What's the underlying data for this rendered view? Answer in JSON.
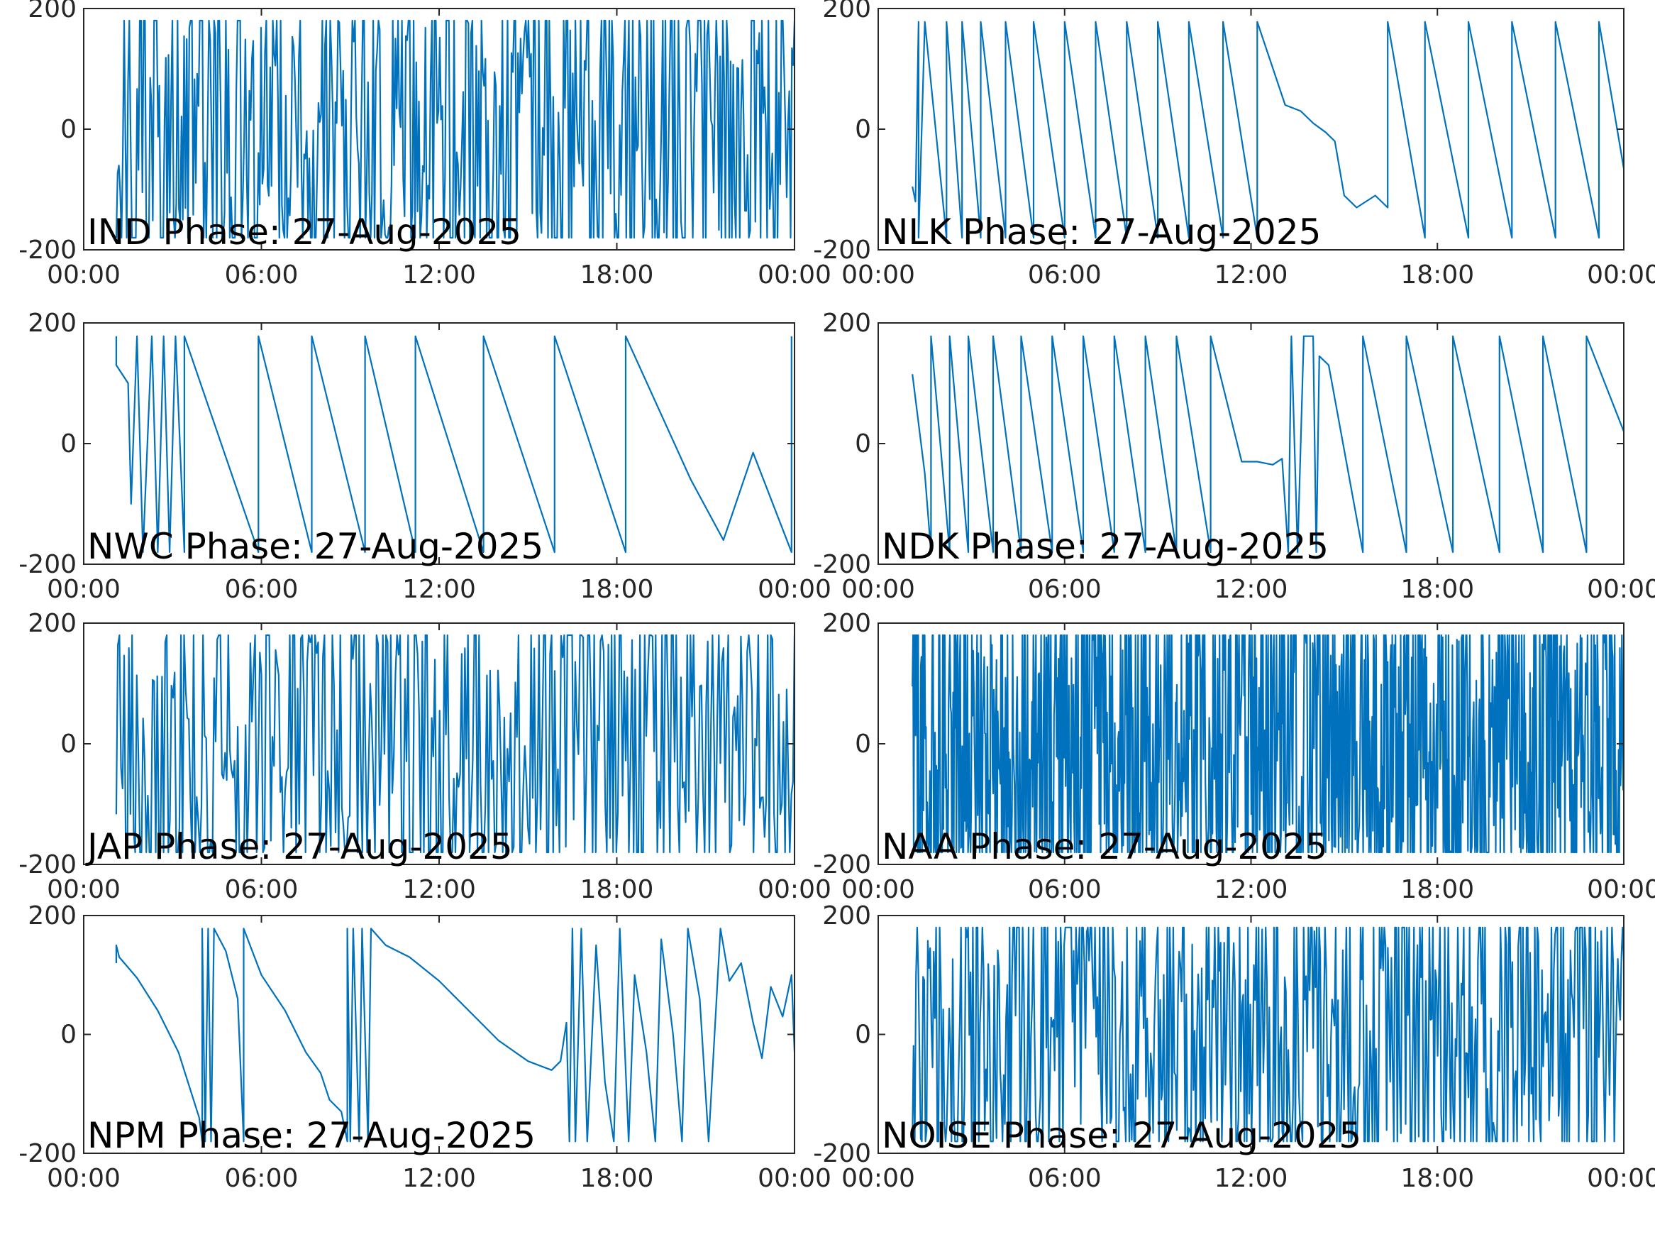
{
  "figure": {
    "line_color": "#0072BD",
    "axis_color": "#262626",
    "background": "#ffffff"
  },
  "chart_data": [
    {
      "type": "line",
      "title": "IND Phase: 27-Aug-2025",
      "ylim": [
        -200,
        200
      ],
      "yticks": [
        "-200",
        "0",
        "200"
      ],
      "xticks": [
        "00:00",
        "06:00",
        "12:00",
        "18:00",
        "00:00"
      ],
      "xlim_hours": [
        0,
        24
      ],
      "grid": false,
      "pattern": "dense",
      "start_hour": 1.1,
      "end_hour": 24.0,
      "segments": 520,
      "amplitude": 180
    },
    {
      "type": "line",
      "title": "NLK Phase: 27-Aug-2025",
      "ylim": [
        -200,
        200
      ],
      "yticks": [
        "-200",
        "0",
        "200"
      ],
      "xticks": [
        "00:00",
        "06:00",
        "12:00",
        "18:00",
        "00:00"
      ],
      "xlim_hours": [
        0,
        24
      ],
      "grid": false,
      "pattern": "path",
      "points": [
        [
          1.1,
          -95
        ],
        [
          1.2,
          -120
        ],
        [
          1.3,
          178
        ],
        [
          1.3,
          -180
        ],
        [
          1.5,
          178
        ],
        [
          2.2,
          -180
        ],
        [
          2.2,
          178
        ],
        [
          2.7,
          -180
        ],
        [
          2.7,
          178
        ],
        [
          3.3,
          -180
        ],
        [
          3.3,
          178
        ],
        [
          4.1,
          -180
        ],
        [
          4.1,
          178
        ],
        [
          5.0,
          -180
        ],
        [
          5.0,
          178
        ],
        [
          6.0,
          -180
        ],
        [
          6.0,
          178
        ],
        [
          7.0,
          -180
        ],
        [
          7.0,
          178
        ],
        [
          8.0,
          -180
        ],
        [
          8.0,
          178
        ],
        [
          9.0,
          -180
        ],
        [
          9.0,
          178
        ],
        [
          10.0,
          -180
        ],
        [
          10.0,
          178
        ],
        [
          11.1,
          -180
        ],
        [
          11.1,
          178
        ],
        [
          12.2,
          -180
        ],
        [
          12.2,
          178
        ],
        [
          13.1,
          40
        ],
        [
          13.6,
          30
        ],
        [
          14.0,
          10
        ],
        [
          14.4,
          -5
        ],
        [
          14.7,
          -20
        ],
        [
          15.0,
          -110
        ],
        [
          15.4,
          -130
        ],
        [
          15.7,
          -120
        ],
        [
          16.0,
          -110
        ],
        [
          16.4,
          -130
        ],
        [
          16.4,
          178
        ],
        [
          17.6,
          -180
        ],
        [
          17.6,
          178
        ],
        [
          19.0,
          -180
        ],
        [
          19.0,
          178
        ],
        [
          20.4,
          -180
        ],
        [
          20.4,
          178
        ],
        [
          21.8,
          -180
        ],
        [
          21.8,
          178
        ],
        [
          23.2,
          -180
        ],
        [
          23.2,
          178
        ],
        [
          24.0,
          -65
        ]
      ]
    },
    {
      "type": "line",
      "title": "NWC Phase: 27-Aug-2025",
      "ylim": [
        -200,
        200
      ],
      "yticks": [
        "-200",
        "0",
        "200"
      ],
      "xticks": [
        "00:00",
        "06:00",
        "12:00",
        "18:00",
        "00:00"
      ],
      "xlim_hours": [
        0,
        24
      ],
      "grid": false,
      "pattern": "path",
      "points": [
        [
          1.1,
          178
        ],
        [
          1.1,
          130
        ],
        [
          1.5,
          100
        ],
        [
          1.6,
          -100
        ],
        [
          1.8,
          178
        ],
        [
          2.0,
          -180
        ],
        [
          2.3,
          178
        ],
        [
          2.5,
          -180
        ],
        [
          2.7,
          178
        ],
        [
          2.9,
          -180
        ],
        [
          3.1,
          178
        ],
        [
          3.4,
          -180
        ],
        [
          3.4,
          178
        ],
        [
          5.9,
          -180
        ],
        [
          5.9,
          178
        ],
        [
          7.7,
          -180
        ],
        [
          7.7,
          178
        ],
        [
          9.5,
          -180
        ],
        [
          9.5,
          178
        ],
        [
          11.2,
          -180
        ],
        [
          11.2,
          178
        ],
        [
          13.5,
          -180
        ],
        [
          13.5,
          178
        ],
        [
          15.9,
          -180
        ],
        [
          15.9,
          178
        ],
        [
          18.3,
          -180
        ],
        [
          18.3,
          178
        ],
        [
          20.5,
          -60
        ],
        [
          21.6,
          -160
        ],
        [
          22.6,
          -15
        ],
        [
          23.9,
          -180
        ],
        [
          23.9,
          178
        ]
      ]
    },
    {
      "type": "line",
      "title": "NDK Phase: 27-Aug-2025",
      "ylim": [
        -200,
        200
      ],
      "yticks": [
        "-200",
        "0",
        "200"
      ],
      "xticks": [
        "00:00",
        "06:00",
        "12:00",
        "18:00",
        "00:00"
      ],
      "xlim_hours": [
        0,
        24
      ],
      "grid": false,
      "pattern": "path",
      "points": [
        [
          1.1,
          115
        ],
        [
          1.5,
          -50
        ],
        [
          1.7,
          -180
        ],
        [
          1.7,
          178
        ],
        [
          2.3,
          -180
        ],
        [
          2.3,
          178
        ],
        [
          2.9,
          -180
        ],
        [
          2.9,
          178
        ],
        [
          3.7,
          -180
        ],
        [
          3.7,
          178
        ],
        [
          4.6,
          -180
        ],
        [
          4.6,
          178
        ],
        [
          5.6,
          -180
        ],
        [
          5.6,
          178
        ],
        [
          6.6,
          -180
        ],
        [
          6.6,
          178
        ],
        [
          7.6,
          -180
        ],
        [
          7.6,
          178
        ],
        [
          8.6,
          -180
        ],
        [
          8.6,
          178
        ],
        [
          9.6,
          -180
        ],
        [
          9.6,
          178
        ],
        [
          10.7,
          -180
        ],
        [
          10.7,
          178
        ],
        [
          11.7,
          -30
        ],
        [
          12.2,
          -30
        ],
        [
          12.7,
          -35
        ],
        [
          13.0,
          -25
        ],
        [
          13.2,
          -180
        ],
        [
          13.3,
          178
        ],
        [
          13.5,
          -180
        ],
        [
          13.7,
          178
        ],
        [
          14.0,
          178
        ],
        [
          14.1,
          -180
        ],
        [
          14.2,
          145
        ],
        [
          14.5,
          130
        ],
        [
          15.6,
          -180
        ],
        [
          15.6,
          178
        ],
        [
          17.0,
          -180
        ],
        [
          17.0,
          178
        ],
        [
          18.5,
          -180
        ],
        [
          18.5,
          178
        ],
        [
          20.0,
          -180
        ],
        [
          20.0,
          178
        ],
        [
          21.4,
          -180
        ],
        [
          21.4,
          178
        ],
        [
          22.8,
          -180
        ],
        [
          22.8,
          178
        ],
        [
          24.0,
          20
        ]
      ]
    },
    {
      "type": "line",
      "title": "JAP Phase: 27-Aug-2025",
      "ylim": [
        -200,
        200
      ],
      "yticks": [
        "-200",
        "0",
        "200"
      ],
      "xticks": [
        "00:00",
        "06:00",
        "12:00",
        "18:00",
        "00:00"
      ],
      "xlim_hours": [
        0,
        24
      ],
      "grid": false,
      "pattern": "dense",
      "start_hour": 1.1,
      "end_hour": 24.0,
      "segments": 430,
      "amplitude": 180
    },
    {
      "type": "line",
      "title": "NAA Phase: 27-Aug-2025",
      "ylim": [
        -200,
        200
      ],
      "yticks": [
        "-200",
        "0",
        "200"
      ],
      "xticks": [
        "00:00",
        "06:00",
        "12:00",
        "18:00",
        "00:00"
      ],
      "xlim_hours": [
        0,
        24
      ],
      "grid": false,
      "pattern": "dense",
      "start_hour": 1.1,
      "end_hour": 24.0,
      "segments": 1100,
      "amplitude": 180
    },
    {
      "type": "line",
      "title": "NPM Phase: 27-Aug-2025",
      "ylim": [
        -200,
        200
      ],
      "yticks": [
        "-200",
        "0",
        "200"
      ],
      "xticks": [
        "00:00",
        "06:00",
        "12:00",
        "18:00",
        "00:00"
      ],
      "xlim_hours": [
        0,
        24
      ],
      "grid": false,
      "pattern": "path",
      "points": [
        [
          1.1,
          120
        ],
        [
          1.1,
          150
        ],
        [
          1.2,
          130
        ],
        [
          1.8,
          95
        ],
        [
          2.5,
          40
        ],
        [
          3.2,
          -30
        ],
        [
          3.9,
          -140
        ],
        [
          4.0,
          -180
        ],
        [
          4.0,
          178
        ],
        [
          4.1,
          -180
        ],
        [
          4.2,
          178
        ],
        [
          4.3,
          -180
        ],
        [
          4.4,
          178
        ],
        [
          4.8,
          140
        ],
        [
          5.2,
          60
        ],
        [
          5.4,
          -180
        ],
        [
          5.4,
          178
        ],
        [
          6.0,
          100
        ],
        [
          6.8,
          40
        ],
        [
          7.5,
          -30
        ],
        [
          8.0,
          -65
        ],
        [
          8.3,
          -110
        ],
        [
          8.7,
          -130
        ],
        [
          8.9,
          -180
        ],
        [
          8.9,
          178
        ],
        [
          9.0,
          -180
        ],
        [
          9.1,
          178
        ],
        [
          9.3,
          -180
        ],
        [
          9.4,
          178
        ],
        [
          9.6,
          -180
        ],
        [
          9.7,
          178
        ],
        [
          10.2,
          150
        ],
        [
          11.0,
          130
        ],
        [
          12.0,
          90
        ],
        [
          13.0,
          40
        ],
        [
          14.0,
          -10
        ],
        [
          15.0,
          -45
        ],
        [
          15.8,
          -60
        ],
        [
          16.1,
          -45
        ],
        [
          16.3,
          20
        ],
        [
          16.4,
          -180
        ],
        [
          16.5,
          178
        ],
        [
          16.6,
          -180
        ],
        [
          16.8,
          178
        ],
        [
          17.0,
          -180
        ],
        [
          17.3,
          150
        ],
        [
          17.6,
          -80
        ],
        [
          17.9,
          -180
        ],
        [
          18.1,
          178
        ],
        [
          18.4,
          -180
        ],
        [
          18.6,
          100
        ],
        [
          19.0,
          -30
        ],
        [
          19.3,
          -180
        ],
        [
          19.5,
          160
        ],
        [
          19.9,
          0
        ],
        [
          20.2,
          -180
        ],
        [
          20.4,
          178
        ],
        [
          20.8,
          60
        ],
        [
          21.1,
          -180
        ],
        [
          21.5,
          178
        ],
        [
          21.8,
          90
        ],
        [
          22.2,
          120
        ],
        [
          22.6,
          20
        ],
        [
          22.9,
          -40
        ],
        [
          23.2,
          80
        ],
        [
          23.6,
          30
        ],
        [
          23.9,
          100
        ],
        [
          24.0,
          -30
        ]
      ]
    },
    {
      "type": "line",
      "title": "NOISE Phase: 27-Aug-2025",
      "ylim": [
        -200,
        200
      ],
      "yticks": [
        "-200",
        "0",
        "200"
      ],
      "xticks": [
        "00:00",
        "06:00",
        "12:00",
        "18:00",
        "00:00"
      ],
      "xlim_hours": [
        0,
        24
      ],
      "grid": false,
      "pattern": "dense",
      "start_hour": 1.1,
      "end_hour": 24.0,
      "segments": 600,
      "amplitude": 180
    }
  ]
}
